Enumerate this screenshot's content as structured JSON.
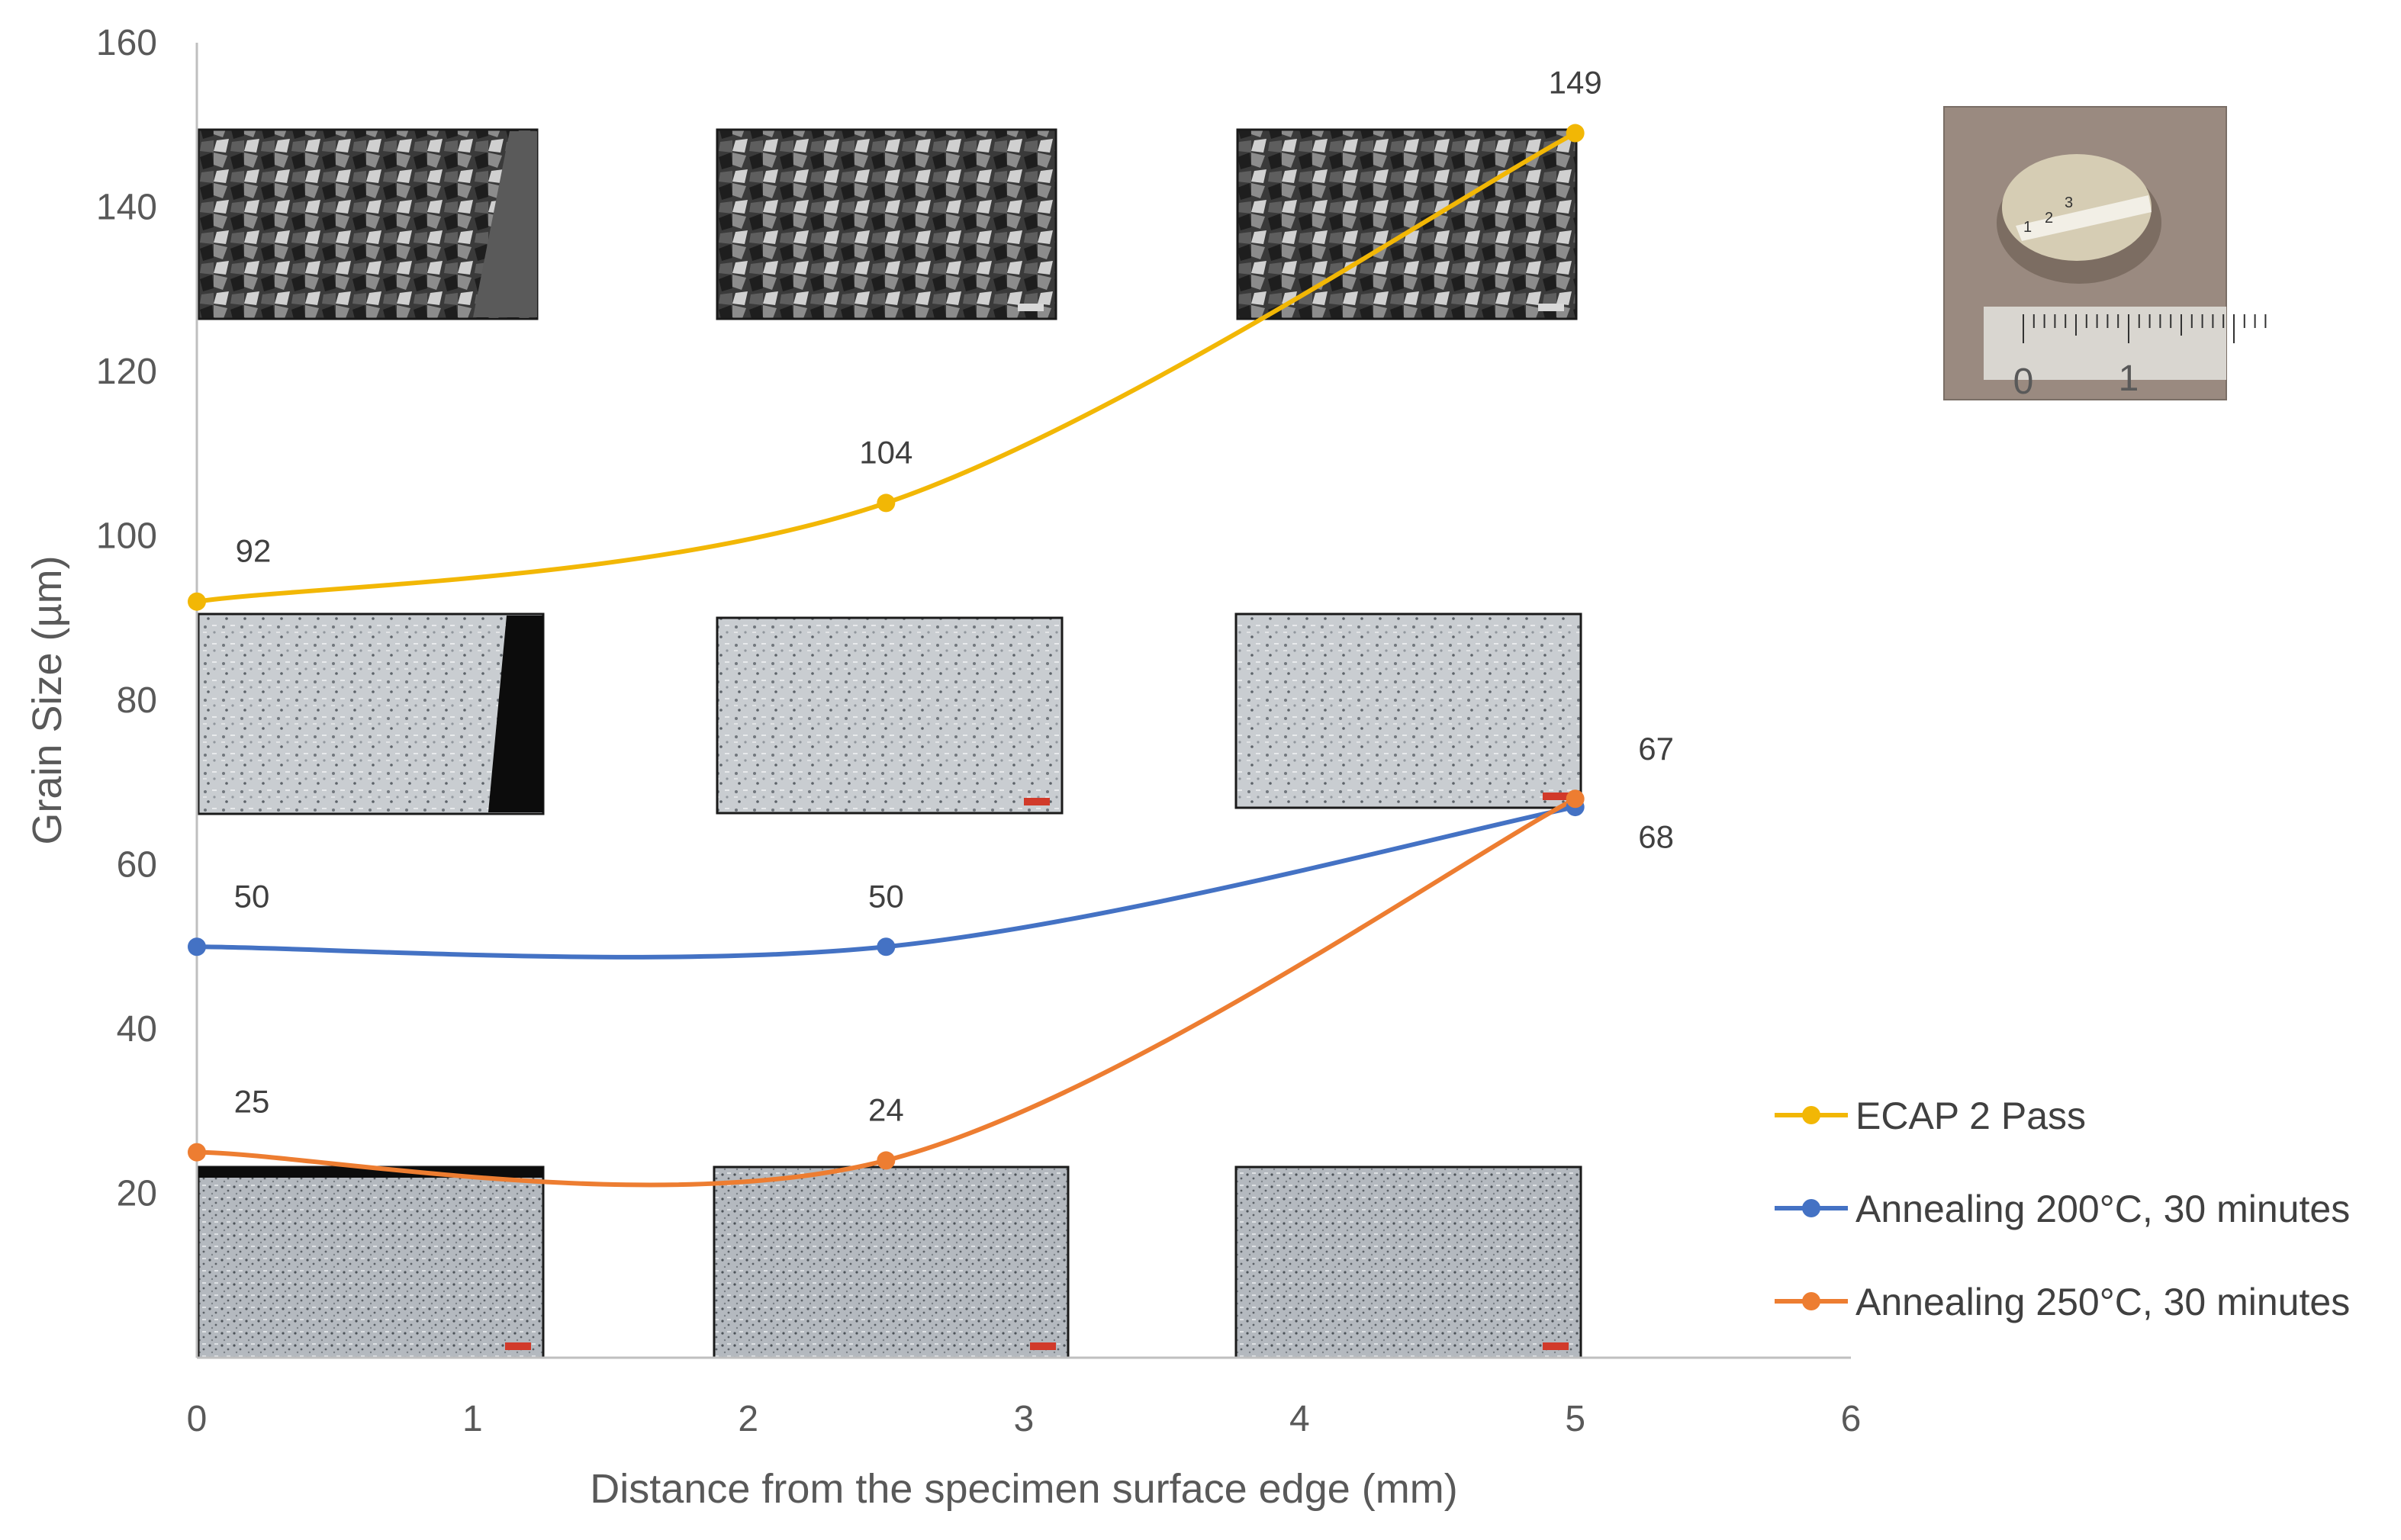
{
  "chart_data": {
    "type": "line",
    "title": "",
    "xlabel": "Distance from the specimen surface edge (mm)",
    "ylabel": "Grain Size (µm)",
    "xlim": [
      0,
      6
    ],
    "ylim": [
      0,
      160
    ],
    "x_ticks": [
      0,
      1,
      2,
      3,
      4,
      5,
      6
    ],
    "y_ticks": [
      20,
      40,
      60,
      80,
      100,
      120,
      140,
      160
    ],
    "grid": false,
    "smooth": true,
    "legend_position": "bottom-right",
    "series": [
      {
        "name": "ECAP 2 Pass",
        "color": "#F2B705",
        "x": [
          0,
          2.5,
          5
        ],
        "y": [
          92,
          104,
          149
        ],
        "labels": [
          "92",
          "104",
          "149"
        ]
      },
      {
        "name": "Annealing 200°C, 30 minutes",
        "color": "#4472C4",
        "x": [
          0,
          2.5,
          5
        ],
        "y": [
          50,
          50,
          67
        ],
        "labels": [
          "50",
          "50",
          "67"
        ]
      },
      {
        "name": "Annealing 250°C, 30 minutes",
        "color": "#ED7D31",
        "x": [
          0,
          2.5,
          5
        ],
        "y": [
          25,
          24,
          68
        ],
        "labels": [
          "25",
          "24",
          "68"
        ]
      }
    ],
    "inset_photo": {
      "ruler_labels": [
        "0",
        "1"
      ],
      "specimen_marks": [
        "1",
        "2",
        "3"
      ]
    }
  }
}
